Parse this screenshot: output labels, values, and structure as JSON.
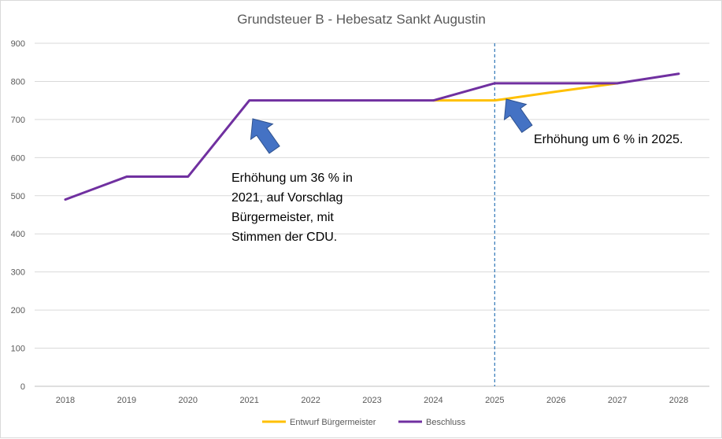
{
  "chart_data": {
    "type": "line",
    "title": "Grundsteuer B - Hebesatz Sankt Augustin",
    "xlabel": "",
    "ylabel": "",
    "categories": [
      "2018",
      "2019",
      "2020",
      "2021",
      "2022",
      "2023",
      "2024",
      "2025",
      "2026",
      "2027",
      "2028"
    ],
    "ylim": [
      0,
      900
    ],
    "yticks": [
      0,
      100,
      200,
      300,
      400,
      500,
      600,
      700,
      800,
      900
    ],
    "grid": true,
    "legend_position": "bottom",
    "reference_line": {
      "x": "2025",
      "style": "dashed",
      "color": "#2e75b6"
    },
    "series": [
      {
        "name": "Entwurf Bürgermeister",
        "color": "#ffc000",
        "values": [
          null,
          null,
          null,
          null,
          null,
          null,
          750,
          750,
          773,
          795,
          null
        ]
      },
      {
        "name": "Beschluss",
        "color": "#7030a0",
        "values": [
          490,
          550,
          550,
          750,
          750,
          750,
          750,
          795,
          795,
          795,
          820
        ]
      }
    ],
    "annotations": [
      {
        "lines": [
          "Erhöhung um 36 % in",
          "2021, auf Vorschlag",
          "Bürgermeister, mit",
          "Stimmen der CDU."
        ]
      },
      {
        "lines": [
          "Erhöhung um 6 % in 2025."
        ]
      }
    ],
    "arrow_color": "#4472c4"
  }
}
